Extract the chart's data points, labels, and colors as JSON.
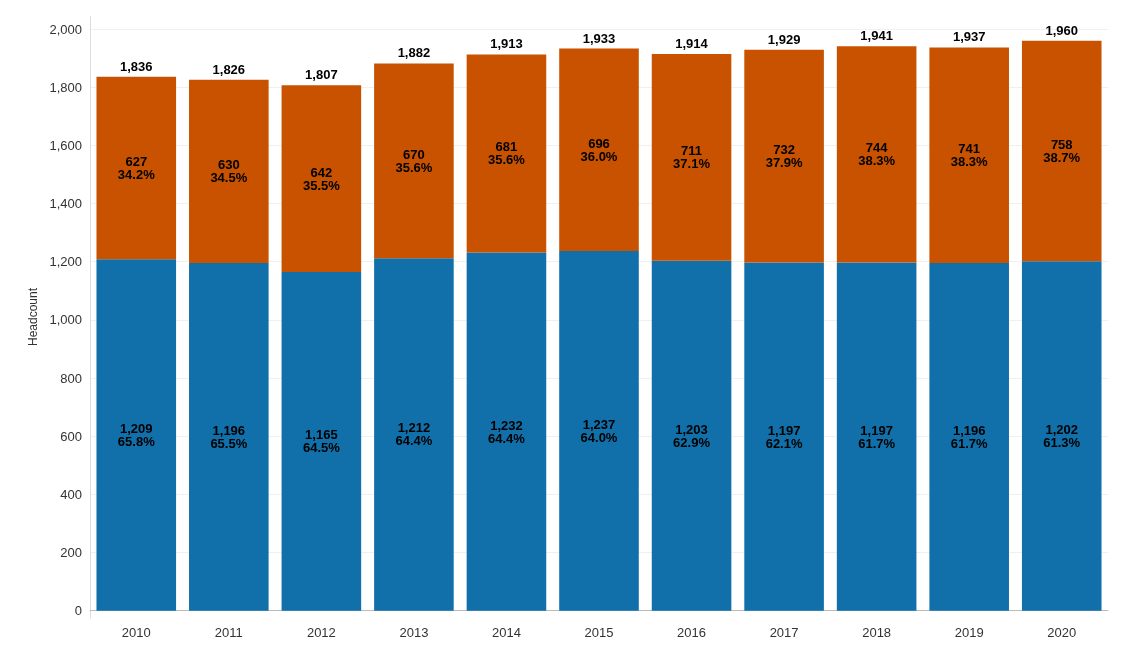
{
  "chart_data": {
    "type": "bar",
    "stacked": true,
    "ylabel": "Headcount",
    "categories": [
      "2010",
      "2011",
      "2012",
      "2013",
      "2014",
      "2015",
      "2016",
      "2017",
      "2018",
      "2019",
      "2020"
    ],
    "series": [
      {
        "color": "#1170aa",
        "values": [
          1209,
          1196,
          1165,
          1212,
          1232,
          1237,
          1203,
          1197,
          1197,
          1196,
          1202
        ],
        "value_labels": [
          "1,209\n65.8%",
          "1,196\n65.5%",
          "1,165\n64.5%",
          "1,212\n64.4%",
          "1,232\n64.4%",
          "1,237\n64.0%",
          "1,203\n62.9%",
          "1,197\n62.1%",
          "1,197\n61.7%",
          "1,196\n61.7%",
          "1,202\n61.3%"
        ]
      },
      {
        "color": "#c85200",
        "values": [
          627,
          630,
          642,
          670,
          681,
          696,
          711,
          732,
          744,
          741,
          758
        ],
        "value_labels": [
          "627\n34.2%",
          "630\n34.5%",
          "642\n35.5%",
          "670\n35.6%",
          "681\n35.6%",
          "696\n36.0%",
          "711\n37.1%",
          "732\n37.9%",
          "744\n38.3%",
          "741\n38.3%",
          "758\n38.7%"
        ]
      }
    ],
    "totals": [
      "1,836",
      "1,826",
      "1,807",
      "1,882",
      "1,913",
      "1,933",
      "1,914",
      "1,929",
      "1,941",
      "1,937",
      "1,960"
    ],
    "ylim": [
      -25,
      2045
    ],
    "yticks": [
      0,
      200,
      400,
      600,
      800,
      {
        "value": 1000,
        "label": "1,000"
      },
      {
        "value": 1200,
        "label": "1,200"
      },
      {
        "value": 1400,
        "label": "1,400"
      },
      {
        "value": 1600,
        "label": "1,600"
      },
      {
        "value": 1800,
        "label": "1,800"
      },
      {
        "value": 2000,
        "label": "2,000"
      }
    ],
    "grid": "y"
  }
}
